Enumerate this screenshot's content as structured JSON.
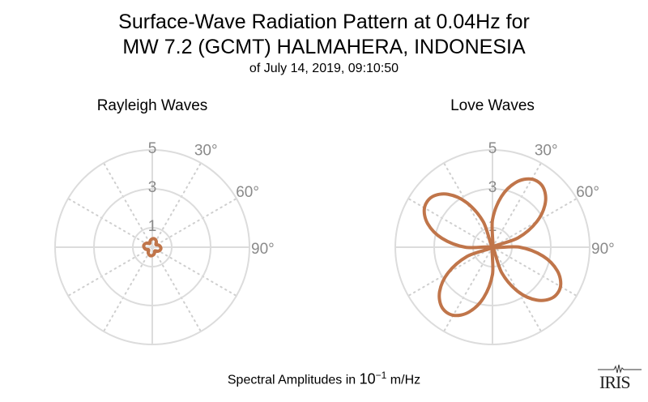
{
  "title_line1": "Surface-Wave Radiation Pattern at 0.04Hz for",
  "title_line2": "MW 7.2 (GCMT) HALMAHERA, INDONESIA",
  "subtitle": "of July 14, 2019, 09:10:50",
  "xlabel_prefix": "Spectral Amplitudes in ",
  "xlabel_base": "10",
  "xlabel_exp": "−1",
  "xlabel_unit": " m/Hz",
  "logo_text": "IRIS",
  "line_color": "#c0754a",
  "chart_data": [
    {
      "type": "line",
      "projection": "polar",
      "title": "Rayleigh Waves",
      "rlim": [
        0,
        5
      ],
      "r_ticks": [
        "1",
        "3",
        "5"
      ],
      "angle_labels": [
        "30°",
        "60°",
        "90°"
      ],
      "grid": true,
      "azimuth_deg": [
        0,
        10,
        20,
        30,
        40,
        50,
        60,
        70,
        80,
        90,
        100,
        110,
        120,
        130,
        140,
        150,
        160,
        170,
        180,
        190,
        200,
        210,
        220,
        230,
        240,
        250,
        260,
        270,
        280,
        290,
        300,
        310,
        320,
        330,
        340,
        350
      ],
      "r": [
        0.43,
        0.45,
        0.43,
        0.39,
        0.33,
        0.24,
        0.24,
        0.33,
        0.39,
        0.43,
        0.45,
        0.43,
        0.39,
        0.33,
        0.24,
        0.24,
        0.33,
        0.39,
        0.43,
        0.45,
        0.43,
        0.39,
        0.33,
        0.24,
        0.24,
        0.33,
        0.39,
        0.43,
        0.45,
        0.43,
        0.39,
        0.33,
        0.24,
        0.24,
        0.33,
        0.39
      ]
    },
    {
      "type": "line",
      "projection": "polar",
      "title": "Love Waves",
      "rlim": [
        0,
        5
      ],
      "r_ticks": [
        "1",
        "3",
        "5"
      ],
      "angle_labels": [
        "30°",
        "60°",
        "90°"
      ],
      "grid": true,
      "azimuth_deg": [
        0,
        10,
        20,
        30,
        40,
        50,
        60,
        70,
        80,
        90,
        100,
        110,
        120,
        130,
        140,
        150,
        160,
        170,
        180,
        190,
        200,
        210,
        220,
        230,
        240,
        250,
        260,
        270,
        280,
        290,
        300,
        310,
        320,
        330,
        340,
        350
      ],
      "r": [
        1.4,
        2.64,
        3.55,
        4.04,
        4.04,
        3.55,
        2.64,
        1.4,
        0,
        1.4,
        2.64,
        3.55,
        4.04,
        4.04,
        3.55,
        2.64,
        1.4,
        0,
        1.4,
        2.64,
        3.55,
        4.04,
        4.04,
        3.55,
        2.64,
        1.4,
        0,
        1.4,
        2.64,
        3.55,
        4.04,
        4.04,
        3.55,
        2.64,
        1.4,
        0
      ]
    }
  ]
}
